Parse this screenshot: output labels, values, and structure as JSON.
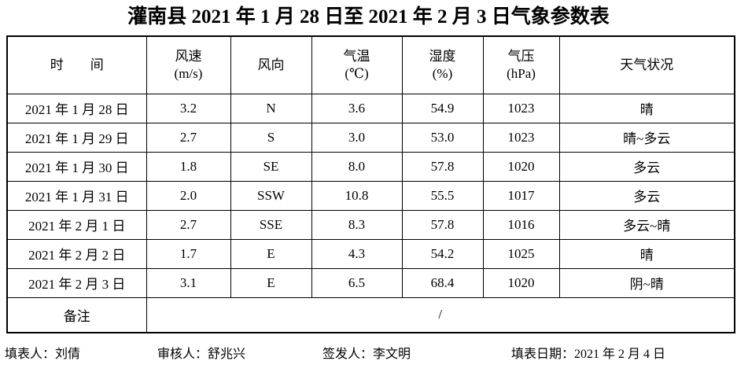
{
  "title": "灌南县 2021 年 1 月 28 日至 2021 年 2 月 3 日气象参数表",
  "table": {
    "headers": [
      {
        "line1": "时　　间",
        "line2": ""
      },
      {
        "line1": "风速",
        "line2": "(m/s)"
      },
      {
        "line1": "风向",
        "line2": ""
      },
      {
        "line1": "气温",
        "line2": "(℃)"
      },
      {
        "line1": "湿度",
        "line2": "(%)"
      },
      {
        "line1": "气压",
        "line2": "(hPa)"
      },
      {
        "line1": "天气状况",
        "line2": ""
      }
    ],
    "column_names": [
      "time",
      "wind-speed",
      "wind-direction",
      "temperature",
      "humidity",
      "pressure",
      "weather"
    ],
    "rows": [
      [
        "2021 年 1 月 28 日",
        "3.2",
        "N",
        "3.6",
        "54.9",
        "1023",
        "晴"
      ],
      [
        "2021 年 1 月 29 日",
        "2.7",
        "S",
        "3.0",
        "53.0",
        "1023",
        "晴~多云"
      ],
      [
        "2021 年 1 月 30 日",
        "1.8",
        "SE",
        "8.0",
        "57.8",
        "1020",
        "多云"
      ],
      [
        "2021 年 1 月 31 日",
        "2.0",
        "SSW",
        "10.8",
        "55.5",
        "1017",
        "多云"
      ],
      [
        "2021 年 2 月 1 日",
        "2.7",
        "SSE",
        "8.3",
        "57.8",
        "1016",
        "多云~晴"
      ],
      [
        "2021 年 2 月 2 日",
        "1.7",
        "E",
        "4.3",
        "54.2",
        "1025",
        "晴"
      ],
      [
        "2021 年 2 月 3 日",
        "3.1",
        "E",
        "6.5",
        "68.4",
        "1020",
        "阴~晴"
      ]
    ],
    "remark_label": "备注",
    "remark_value": "/"
  },
  "footer": {
    "filled_by": "填表人：刘倩",
    "reviewed_by": "审核人：舒兆兴",
    "issued_by": "签发人：李文明",
    "fill_date": "填表日期：2021 年 2 月 4 日"
  }
}
